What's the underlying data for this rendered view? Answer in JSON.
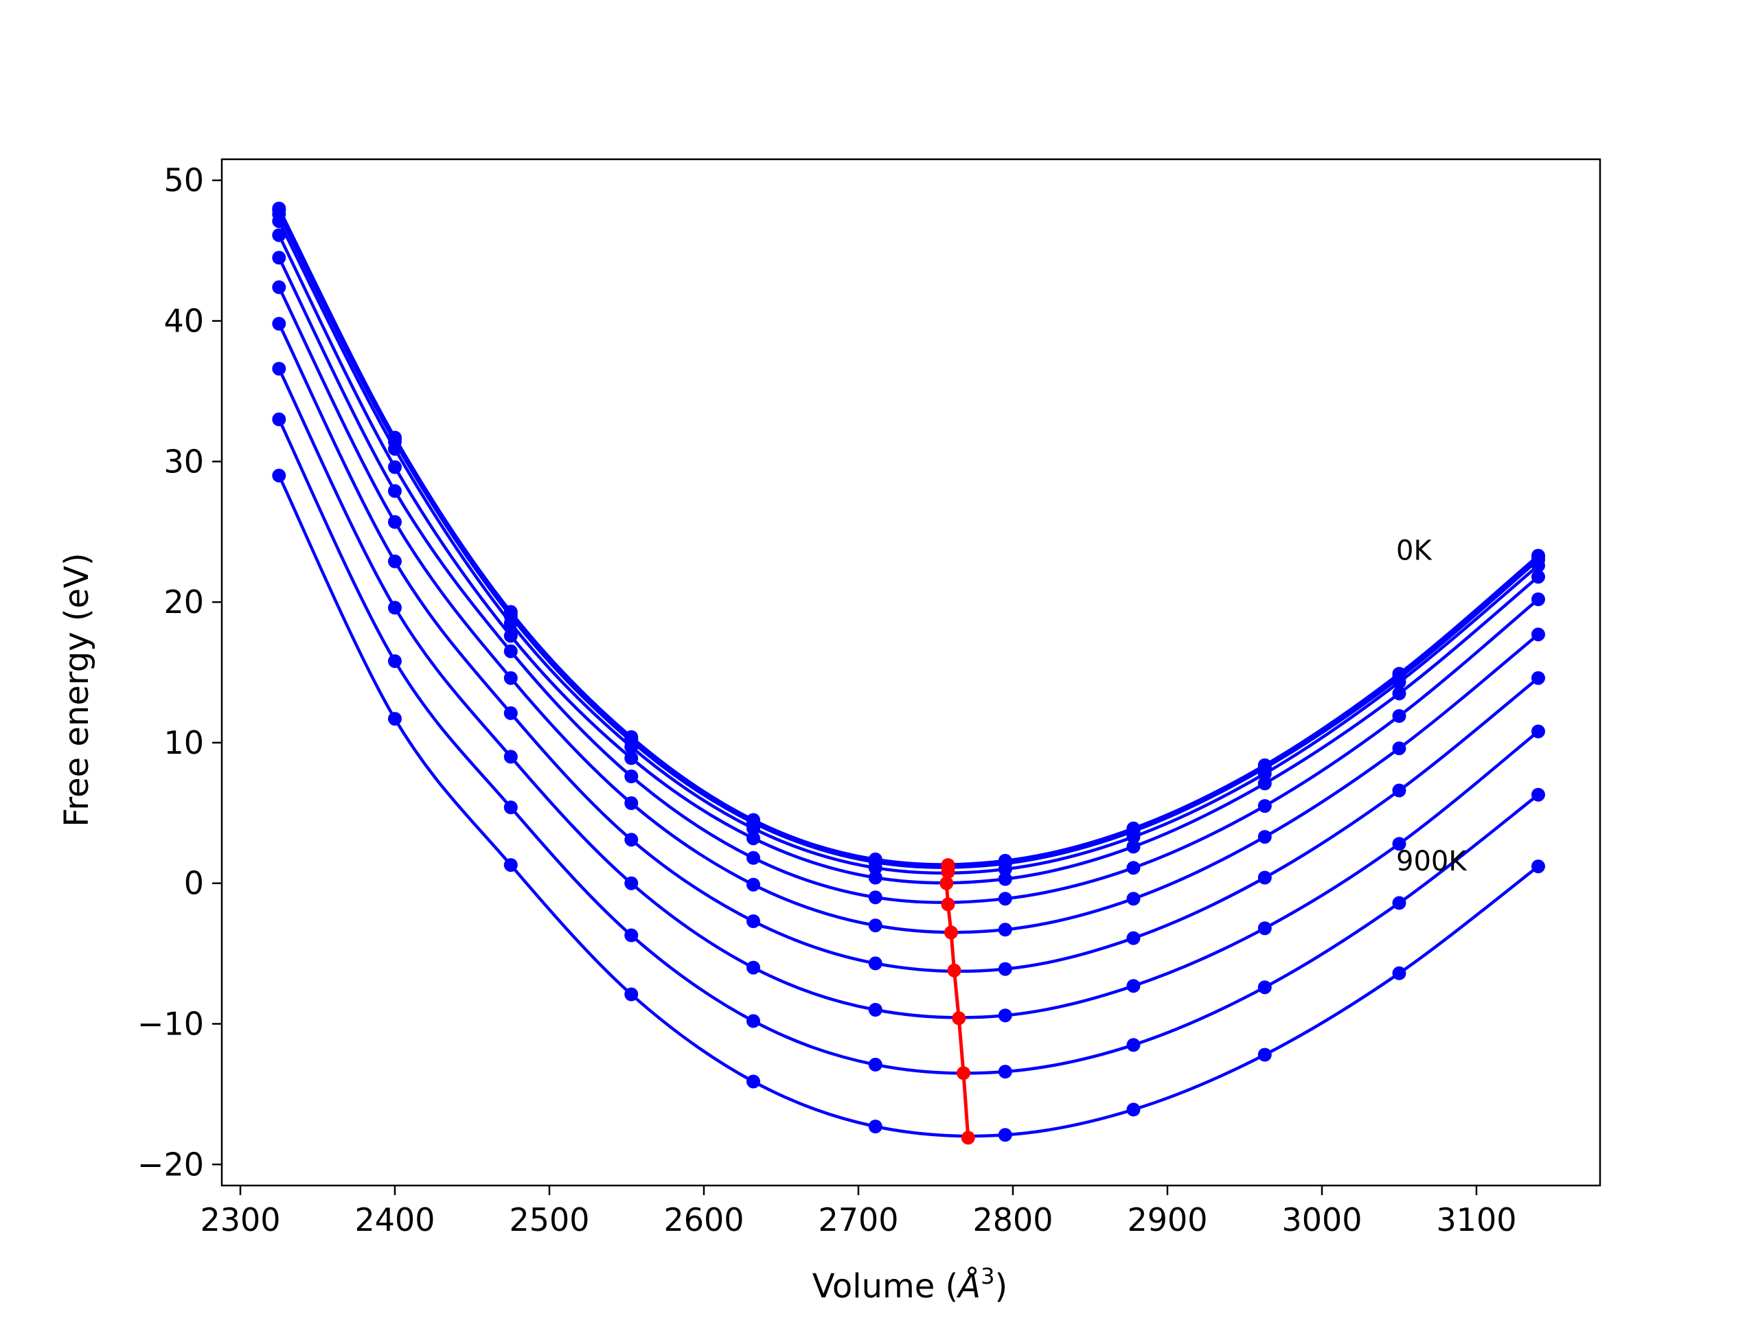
{
  "chart_data": {
    "type": "line",
    "title": "",
    "xlabel": "Volume (",
    "xlabel_unit": "Å",
    "xlabel_sup": "3",
    "xlabel_close": ")",
    "ylabel": "Free energy (eV)",
    "xlim": [
      2288,
      3180
    ],
    "ylim": [
      -21.5,
      51.5
    ],
    "xticks": [
      2300,
      2400,
      2500,
      2600,
      2700,
      2800,
      2900,
      3000,
      3100
    ],
    "yticks": [
      -20,
      -10,
      0,
      10,
      20,
      30,
      40,
      50
    ],
    "ytick_labels": [
      "−20",
      "−10",
      "0",
      "10",
      "20",
      "30",
      "40",
      "50"
    ],
    "grid": false,
    "series_color": "#0000ff",
    "minimum_color": "#ff0000",
    "x": [
      2325,
      2400,
      2475,
      2553,
      2632,
      2711,
      2795,
      2878,
      2963,
      3050,
      3140
    ],
    "series": [
      {
        "values": [
          48.0,
          31.7,
          19.3,
          10.4,
          4.5,
          1.7,
          1.6,
          3.9,
          8.4,
          14.9,
          23.3
        ]
      },
      {
        "values": [
          47.9,
          31.6,
          19.2,
          10.3,
          4.4,
          1.6,
          1.5,
          3.8,
          8.3,
          14.8,
          23.2
        ]
      },
      {
        "values": [
          47.6,
          31.4,
          19.0,
          10.1,
          4.3,
          1.5,
          1.4,
          3.7,
          8.2,
          14.6,
          23.0
        ]
      },
      {
        "values": [
          47.1,
          30.9,
          18.5,
          9.7,
          3.9,
          1.1,
          1.0,
          3.3,
          7.8,
          14.3,
          22.6
        ]
      },
      {
        "values": [
          46.1,
          29.6,
          17.6,
          8.9,
          3.2,
          0.4,
          0.3,
          2.6,
          7.1,
          13.5,
          21.8
        ]
      },
      {
        "values": [
          44.5,
          27.9,
          16.5,
          7.6,
          1.8,
          -1.0,
          -1.1,
          1.1,
          5.5,
          11.9,
          20.2
        ]
      },
      {
        "values": [
          42.4,
          25.7,
          14.6,
          5.7,
          -0.1,
          -3.0,
          -3.3,
          -1.1,
          3.3,
          9.6,
          17.7
        ]
      },
      {
        "values": [
          39.8,
          22.9,
          12.1,
          3.1,
          -2.7,
          -5.7,
          -6.1,
          -3.9,
          0.4,
          6.6,
          14.6
        ]
      },
      {
        "values": [
          36.6,
          19.6,
          9.0,
          0.0,
          -6.0,
          -9.0,
          -9.4,
          -7.3,
          -3.2,
          2.8,
          10.8
        ]
      },
      {
        "values": [
          33.0,
          15.8,
          5.4,
          -3.7,
          -9.8,
          -12.9,
          -13.4,
          -11.5,
          -7.4,
          -1.4,
          6.3
        ]
      },
      {
        "values": [
          29.0,
          11.7,
          1.3,
          -7.9,
          -14.1,
          -17.3,
          -17.9,
          -16.1,
          -12.2,
          -6.4,
          1.2
        ]
      }
    ],
    "minimum_curve": {
      "x": [
        2758,
        2758,
        2758,
        2758,
        2757,
        2758,
        2760,
        2762,
        2765,
        2768,
        2771
      ],
      "y": [
        1.3,
        1.2,
        1.1,
        0.8,
        0.0,
        -1.5,
        -3.5,
        -6.2,
        -9.6,
        -13.5,
        -18.1
      ]
    },
    "annotations": [
      {
        "text": "0K",
        "x": 3048,
        "y": 23.7
      },
      {
        "text": "900K",
        "x": 3048,
        "y": 1.6
      }
    ]
  }
}
